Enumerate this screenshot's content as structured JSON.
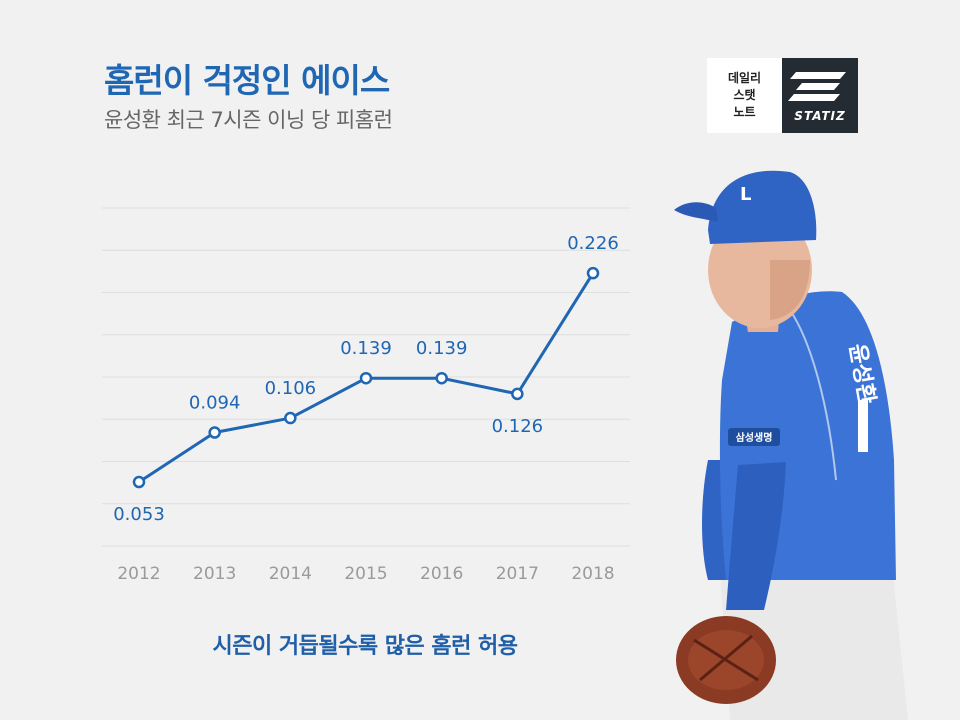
{
  "header": {
    "title": "홈런이 걱정인 에이스",
    "subtitle": "윤성환 최근 7시즌 이닝 당 피홈런"
  },
  "logo": {
    "lines": [
      "데일리",
      "스탯",
      "노트"
    ],
    "brand": "STATIZ",
    "dark_color": "#252b33"
  },
  "player": {
    "jersey_sponsor": "삼성생명",
    "jersey_name": "윤성환"
  },
  "caption": "시즌이 거듭될수록 많은 홈런 허용",
  "chart_data": {
    "type": "line",
    "title": "",
    "xlabel": "",
    "ylabel": "",
    "categories": [
      "2012",
      "2013",
      "2014",
      "2015",
      "2016",
      "2017",
      "2018"
    ],
    "values": [
      0.053,
      0.094,
      0.106,
      0.139,
      0.139,
      0.126,
      0.226
    ],
    "data_labels": [
      "0.053",
      "0.094",
      "0.106",
      "0.139",
      "0.139",
      "0.126",
      "0.226"
    ],
    "label_positions": [
      "below",
      "above",
      "above",
      "above",
      "above",
      "below",
      "above"
    ],
    "ylim": [
      0,
      0.28
    ],
    "grid": true,
    "line_color": "#1f66b3",
    "label_color": "#1f66b3",
    "grid_color": "#dedede"
  }
}
